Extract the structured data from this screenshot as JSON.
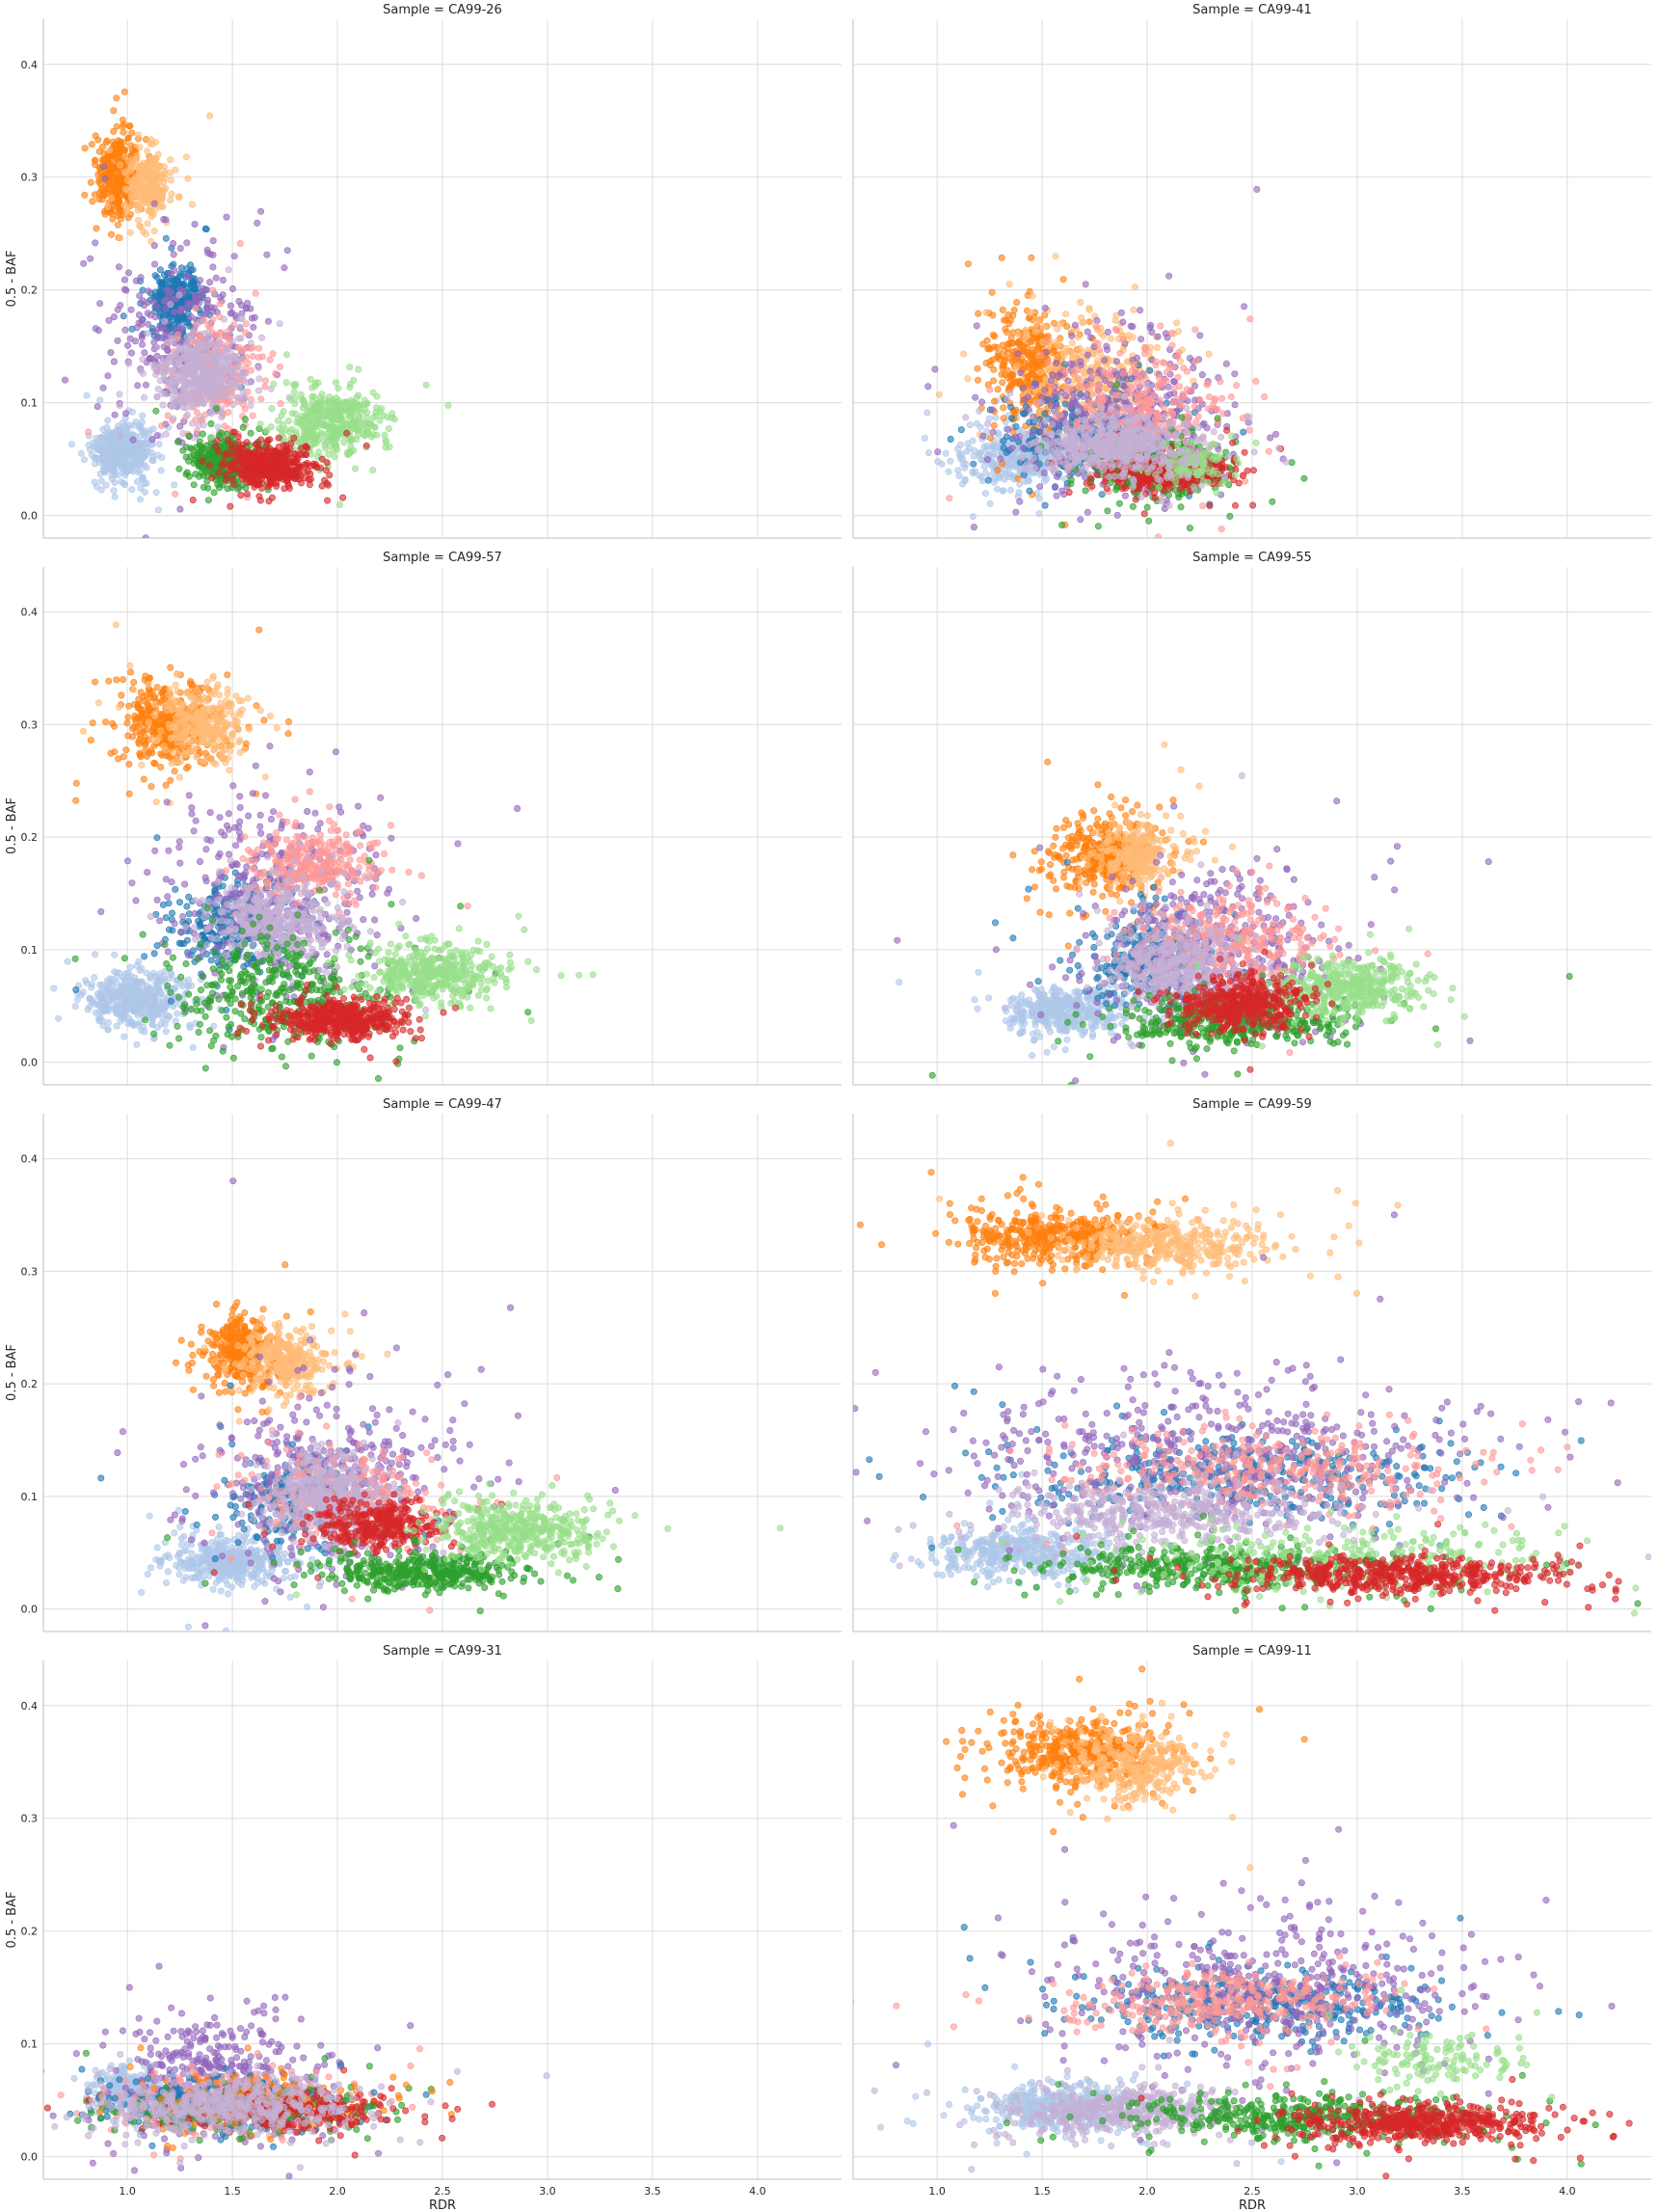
{
  "chart_data": {
    "type": "scatter",
    "xlabel": "RDR",
    "ylabel": "0.5 - BAF",
    "xlim": [
      0.6,
      4.4
    ],
    "ylim": [
      -0.02,
      0.44
    ],
    "xticks": [
      "1.0",
      "1.5",
      "2.0",
      "2.5",
      "3.0",
      "3.5",
      "4.0"
    ],
    "yticks": [
      "0.0",
      "0.1",
      "0.2",
      "0.3",
      "0.4"
    ],
    "grid": true,
    "legend": "none",
    "cluster_colors": [
      "#ff7f0e",
      "#ffbb78",
      "#1f77b4",
      "#9467bd",
      "#c5b0d5",
      "#ff9896",
      "#aec7e8",
      "#2ca02c",
      "#98df8a",
      "#d62728"
    ],
    "panels": [
      {
        "title": "Sample = CA99-26",
        "clusters": [
          {
            "color": "#aec7e8",
            "x": 0.98,
            "y": 0.058,
            "sx": 0.07,
            "sy": 0.012,
            "n": 420
          },
          {
            "color": "#ff7f0e",
            "x": 0.96,
            "y": 0.3,
            "sx": 0.05,
            "sy": 0.018,
            "n": 330
          },
          {
            "color": "#ffbb78",
            "x": 1.1,
            "y": 0.293,
            "sx": 0.05,
            "sy": 0.015,
            "n": 260
          },
          {
            "color": "#1f77b4",
            "x": 1.23,
            "y": 0.19,
            "sx": 0.06,
            "sy": 0.015,
            "n": 300
          },
          {
            "color": "#9467bd",
            "x": 1.28,
            "y": 0.16,
            "sx": 0.18,
            "sy": 0.04,
            "n": 300
          },
          {
            "color": "#ff9896",
            "x": 1.42,
            "y": 0.13,
            "sx": 0.1,
            "sy": 0.025,
            "n": 250
          },
          {
            "color": "#c5b0d5",
            "x": 1.35,
            "y": 0.125,
            "sx": 0.1,
            "sy": 0.018,
            "n": 420
          },
          {
            "color": "#2ca02c",
            "x": 1.45,
            "y": 0.048,
            "sx": 0.08,
            "sy": 0.01,
            "n": 300
          },
          {
            "color": "#98df8a",
            "x": 1.96,
            "y": 0.082,
            "sx": 0.12,
            "sy": 0.014,
            "n": 420
          },
          {
            "color": "#d62728",
            "x": 1.68,
            "y": 0.044,
            "sx": 0.1,
            "sy": 0.009,
            "n": 460
          }
        ]
      },
      {
        "title": "Sample = CA99-41",
        "clusters": [
          {
            "color": "#aec7e8",
            "x": 1.4,
            "y": 0.052,
            "sx": 0.15,
            "sy": 0.012,
            "n": 380
          },
          {
            "color": "#ff7f0e",
            "x": 1.45,
            "y": 0.135,
            "sx": 0.1,
            "sy": 0.025,
            "n": 350
          },
          {
            "color": "#ffbb78",
            "x": 1.75,
            "y": 0.125,
            "sx": 0.15,
            "sy": 0.025,
            "n": 300
          },
          {
            "color": "#1f77b4",
            "x": 1.7,
            "y": 0.07,
            "sx": 0.2,
            "sy": 0.02,
            "n": 250
          },
          {
            "color": "#9467bd",
            "x": 1.85,
            "y": 0.085,
            "sx": 0.25,
            "sy": 0.035,
            "n": 450
          },
          {
            "color": "#ff9896",
            "x": 2.0,
            "y": 0.09,
            "sx": 0.2,
            "sy": 0.03,
            "n": 300
          },
          {
            "color": "#2ca02c",
            "x": 2.05,
            "y": 0.04,
            "sx": 0.15,
            "sy": 0.012,
            "n": 300
          },
          {
            "color": "#d62728",
            "x": 2.1,
            "y": 0.038,
            "sx": 0.15,
            "sy": 0.008,
            "n": 350
          },
          {
            "color": "#98df8a",
            "x": 2.2,
            "y": 0.045,
            "sx": 0.1,
            "sy": 0.01,
            "n": 120
          },
          {
            "color": "#c5b0d5",
            "x": 1.85,
            "y": 0.062,
            "sx": 0.18,
            "sy": 0.013,
            "n": 480
          }
        ]
      },
      {
        "title": "Sample = CA99-57",
        "clusters": [
          {
            "color": "#aec7e8",
            "x": 1.05,
            "y": 0.055,
            "sx": 0.12,
            "sy": 0.012,
            "n": 420
          },
          {
            "color": "#ff7f0e",
            "x": 1.2,
            "y": 0.3,
            "sx": 0.12,
            "sy": 0.018,
            "n": 400
          },
          {
            "color": "#ffbb78",
            "x": 1.35,
            "y": 0.3,
            "sx": 0.1,
            "sy": 0.016,
            "n": 280
          },
          {
            "color": "#1f77b4",
            "x": 1.5,
            "y": 0.12,
            "sx": 0.15,
            "sy": 0.02,
            "n": 300
          },
          {
            "color": "#9467bd",
            "x": 1.7,
            "y": 0.15,
            "sx": 0.25,
            "sy": 0.04,
            "n": 400
          },
          {
            "color": "#ff9896",
            "x": 1.9,
            "y": 0.175,
            "sx": 0.15,
            "sy": 0.015,
            "n": 300
          },
          {
            "color": "#c5b0d5",
            "x": 1.7,
            "y": 0.125,
            "sx": 0.15,
            "sy": 0.018,
            "n": 420
          },
          {
            "color": "#2ca02c",
            "x": 1.7,
            "y": 0.06,
            "sx": 0.25,
            "sy": 0.025,
            "n": 380
          },
          {
            "color": "#98df8a",
            "x": 2.45,
            "y": 0.08,
            "sx": 0.15,
            "sy": 0.012,
            "n": 420
          },
          {
            "color": "#d62728",
            "x": 2.0,
            "y": 0.038,
            "sx": 0.15,
            "sy": 0.008,
            "n": 450
          }
        ]
      },
      {
        "title": "Sample = CA99-55",
        "clusters": [
          {
            "color": "#aec7e8",
            "x": 1.6,
            "y": 0.045,
            "sx": 0.15,
            "sy": 0.01,
            "n": 380
          },
          {
            "color": "#ff7f0e",
            "x": 1.8,
            "y": 0.185,
            "sx": 0.12,
            "sy": 0.017,
            "n": 380
          },
          {
            "color": "#ffbb78",
            "x": 1.95,
            "y": 0.185,
            "sx": 0.1,
            "sy": 0.015,
            "n": 250
          },
          {
            "color": "#1f77b4",
            "x": 2.0,
            "y": 0.09,
            "sx": 0.15,
            "sy": 0.02,
            "n": 280
          },
          {
            "color": "#9467bd",
            "x": 2.3,
            "y": 0.1,
            "sx": 0.3,
            "sy": 0.035,
            "n": 420
          },
          {
            "color": "#ff9896",
            "x": 2.4,
            "y": 0.11,
            "sx": 0.2,
            "sy": 0.02,
            "n": 300
          },
          {
            "color": "#c5b0d5",
            "x": 2.15,
            "y": 0.085,
            "sx": 0.15,
            "sy": 0.02,
            "n": 420
          },
          {
            "color": "#2ca02c",
            "x": 2.4,
            "y": 0.035,
            "sx": 0.25,
            "sy": 0.01,
            "n": 400
          },
          {
            "color": "#98df8a",
            "x": 2.95,
            "y": 0.065,
            "sx": 0.18,
            "sy": 0.012,
            "n": 420
          },
          {
            "color": "#d62728",
            "x": 2.45,
            "y": 0.052,
            "sx": 0.15,
            "sy": 0.012,
            "n": 420
          }
        ]
      },
      {
        "title": "Sample = CA99-47",
        "clusters": [
          {
            "color": "#aec7e8",
            "x": 1.5,
            "y": 0.043,
            "sx": 0.15,
            "sy": 0.01,
            "n": 400
          },
          {
            "color": "#ff7f0e",
            "x": 1.55,
            "y": 0.228,
            "sx": 0.08,
            "sy": 0.015,
            "n": 350
          },
          {
            "color": "#ffbb78",
            "x": 1.75,
            "y": 0.22,
            "sx": 0.1,
            "sy": 0.015,
            "n": 300
          },
          {
            "color": "#1f77b4",
            "x": 1.8,
            "y": 0.1,
            "sx": 0.15,
            "sy": 0.02,
            "n": 250
          },
          {
            "color": "#9467bd",
            "x": 2.0,
            "y": 0.12,
            "sx": 0.3,
            "sy": 0.04,
            "n": 400
          },
          {
            "color": "#ff9896",
            "x": 2.05,
            "y": 0.1,
            "sx": 0.2,
            "sy": 0.02,
            "n": 300
          },
          {
            "color": "#c5b0d5",
            "x": 1.95,
            "y": 0.098,
            "sx": 0.15,
            "sy": 0.018,
            "n": 420
          },
          {
            "color": "#d62728",
            "x": 2.2,
            "y": 0.075,
            "sx": 0.15,
            "sy": 0.01,
            "n": 300
          },
          {
            "color": "#2ca02c",
            "x": 2.4,
            "y": 0.033,
            "sx": 0.22,
            "sy": 0.008,
            "n": 400
          },
          {
            "color": "#98df8a",
            "x": 2.85,
            "y": 0.07,
            "sx": 0.2,
            "sy": 0.012,
            "n": 420
          }
        ]
      },
      {
        "title": "Sample = CA99-59",
        "clusters": [
          {
            "color": "#aec7e8",
            "x": 1.4,
            "y": 0.05,
            "sx": 0.2,
            "sy": 0.012,
            "n": 420
          },
          {
            "color": "#ff7f0e",
            "x": 1.55,
            "y": 0.33,
            "sx": 0.2,
            "sy": 0.012,
            "n": 420
          },
          {
            "color": "#ffbb78",
            "x": 2.1,
            "y": 0.325,
            "sx": 0.25,
            "sy": 0.012,
            "n": 380
          },
          {
            "color": "#1f77b4",
            "x": 2.4,
            "y": 0.12,
            "sx": 0.55,
            "sy": 0.02,
            "n": 400
          },
          {
            "color": "#9467bd",
            "x": 2.3,
            "y": 0.135,
            "sx": 0.6,
            "sy": 0.035,
            "n": 500
          },
          {
            "color": "#ff9896",
            "x": 2.6,
            "y": 0.125,
            "sx": 0.45,
            "sy": 0.018,
            "n": 350
          },
          {
            "color": "#c5b0d5",
            "x": 2.1,
            "y": 0.085,
            "sx": 0.4,
            "sy": 0.015,
            "n": 420
          },
          {
            "color": "#2ca02c",
            "x": 2.3,
            "y": 0.038,
            "sx": 0.4,
            "sy": 0.01,
            "n": 400
          },
          {
            "color": "#98df8a",
            "x": 3.0,
            "y": 0.045,
            "sx": 0.5,
            "sy": 0.015,
            "n": 300
          },
          {
            "color": "#d62728",
            "x": 3.2,
            "y": 0.03,
            "sx": 0.4,
            "sy": 0.008,
            "n": 500
          }
        ]
      },
      {
        "title": "Sample = CA99-31",
        "clusters": [
          {
            "color": "#aec7e8",
            "x": 1.0,
            "y": 0.058,
            "sx": 0.08,
            "sy": 0.01,
            "n": 250
          },
          {
            "color": "#9467bd",
            "x": 1.4,
            "y": 0.07,
            "sx": 0.25,
            "sy": 0.025,
            "n": 400
          },
          {
            "color": "#ff9896",
            "x": 1.5,
            "y": 0.05,
            "sx": 0.25,
            "sy": 0.012,
            "n": 300
          },
          {
            "color": "#1f77b4",
            "x": 1.45,
            "y": 0.045,
            "sx": 0.3,
            "sy": 0.012,
            "n": 250
          },
          {
            "color": "#2ca02c",
            "x": 1.55,
            "y": 0.04,
            "sx": 0.3,
            "sy": 0.01,
            "n": 250
          },
          {
            "color": "#ff7f0e",
            "x": 1.6,
            "y": 0.05,
            "sx": 0.3,
            "sy": 0.012,
            "n": 150
          },
          {
            "color": "#d62728",
            "x": 1.8,
            "y": 0.04,
            "sx": 0.25,
            "sy": 0.008,
            "n": 250
          },
          {
            "color": "#c5b0d5",
            "x": 1.45,
            "y": 0.045,
            "sx": 0.28,
            "sy": 0.012,
            "n": 500
          }
        ]
      },
      {
        "title": "Sample = CA99-11",
        "clusters": [
          {
            "color": "#aec7e8",
            "x": 1.6,
            "y": 0.043,
            "sx": 0.2,
            "sy": 0.01,
            "n": 400
          },
          {
            "color": "#ff7f0e",
            "x": 1.7,
            "y": 0.36,
            "sx": 0.2,
            "sy": 0.015,
            "n": 450
          },
          {
            "color": "#ffbb78",
            "x": 1.95,
            "y": 0.345,
            "sx": 0.15,
            "sy": 0.015,
            "n": 300
          },
          {
            "color": "#1f77b4",
            "x": 2.5,
            "y": 0.135,
            "sx": 0.4,
            "sy": 0.015,
            "n": 400
          },
          {
            "color": "#9467bd",
            "x": 2.6,
            "y": 0.15,
            "sx": 0.5,
            "sy": 0.035,
            "n": 450
          },
          {
            "color": "#ff9896",
            "x": 2.4,
            "y": 0.138,
            "sx": 0.35,
            "sy": 0.015,
            "n": 350
          },
          {
            "color": "#c5b0d5",
            "x": 1.9,
            "y": 0.04,
            "sx": 0.25,
            "sy": 0.01,
            "n": 420
          },
          {
            "color": "#2ca02c",
            "x": 2.7,
            "y": 0.035,
            "sx": 0.4,
            "sy": 0.01,
            "n": 400
          },
          {
            "color": "#98df8a",
            "x": 3.4,
            "y": 0.085,
            "sx": 0.2,
            "sy": 0.012,
            "n": 120
          },
          {
            "color": "#d62728",
            "x": 3.3,
            "y": 0.03,
            "sx": 0.3,
            "sy": 0.008,
            "n": 500
          }
        ]
      }
    ]
  }
}
